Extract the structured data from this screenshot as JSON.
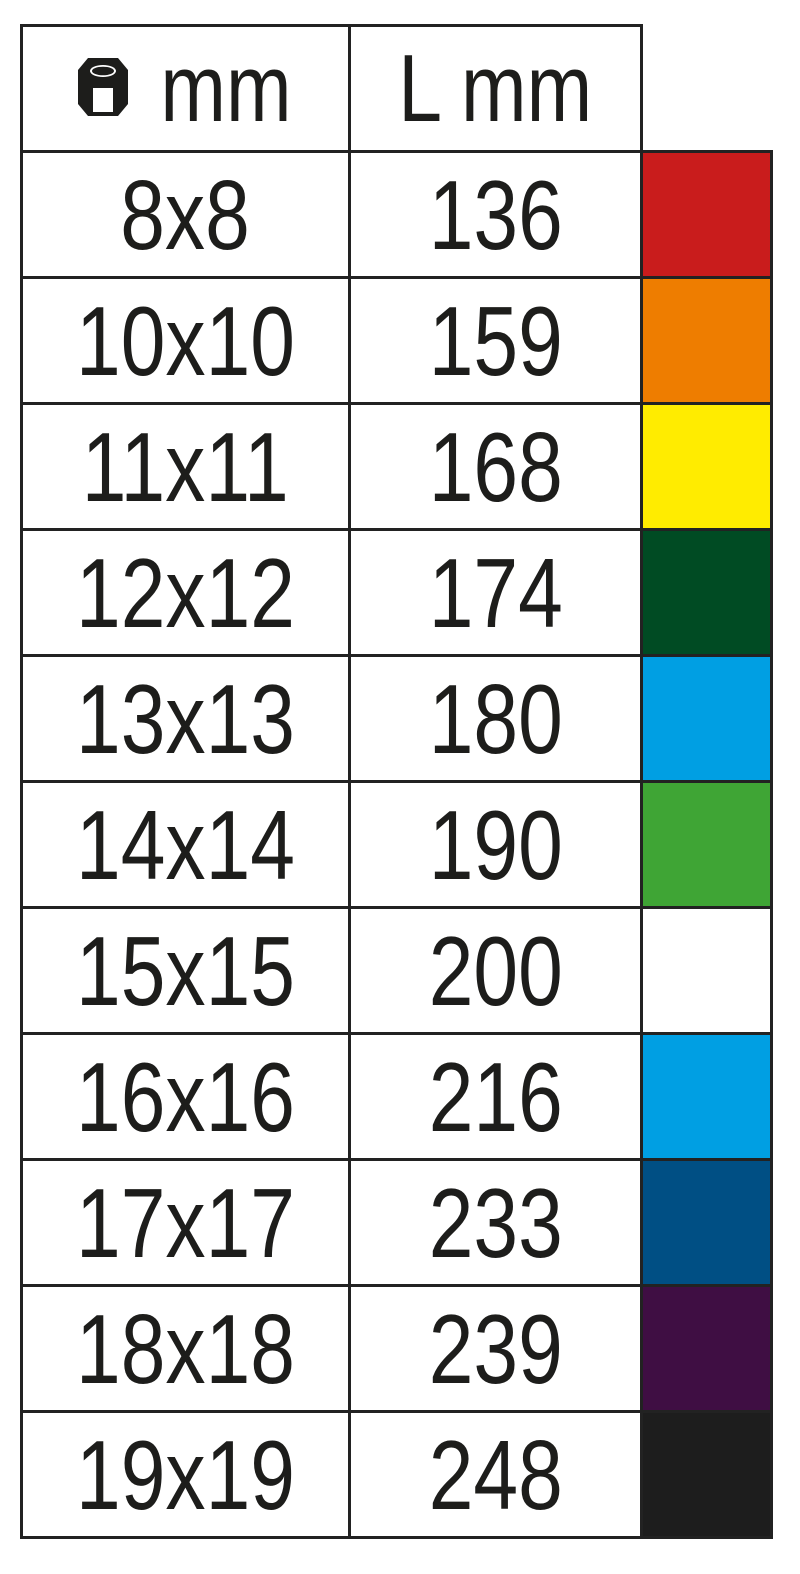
{
  "header": {
    "col1_icon": "hex-nut-icon",
    "col1_label": "mm",
    "col2_label": "L mm"
  },
  "rows": [
    {
      "size": "8x8",
      "length": "136",
      "color": "#c91c1c"
    },
    {
      "size": "10x10",
      "length": "159",
      "color": "#ee7d00"
    },
    {
      "size": "11x11",
      "length": "168",
      "color": "#ffec00"
    },
    {
      "size": "12x12",
      "length": "174",
      "color": "#004b23"
    },
    {
      "size": "13x13",
      "length": "180",
      "color": "#009fe3"
    },
    {
      "size": "14x14",
      "length": "190",
      "color": "#3fa535"
    },
    {
      "size": "15x15",
      "length": "200",
      "color": "#ffffff"
    },
    {
      "size": "16x16",
      "length": "216",
      "color": "#009fe3"
    },
    {
      "size": "17x17",
      "length": "233",
      "color": "#004f84"
    },
    {
      "size": "18x18",
      "length": "239",
      "color": "#3f0e43"
    },
    {
      "size": "19x19",
      "length": "248",
      "color": "#1d1d1d"
    }
  ]
}
